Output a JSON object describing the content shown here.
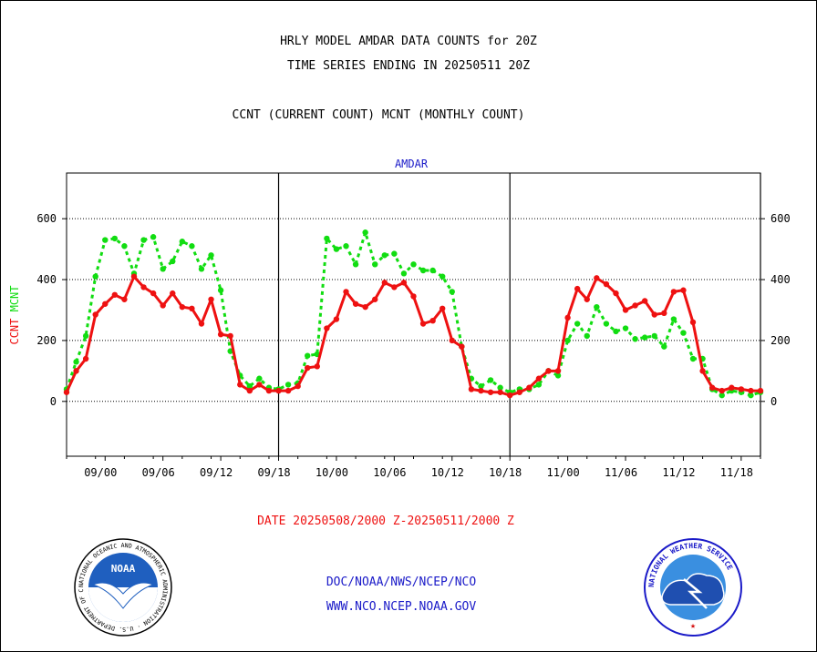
{
  "header": {
    "line1": "HRLY MODEL AMDAR DATA COUNTS for 20Z",
    "line2": "TIME SERIES ENDING IN 20250511 20Z",
    "line3": "CCNT (CURRENT COUNT) MCNT (MONTHLY COUNT)"
  },
  "footer": {
    "date_range": "DATE 20250508/2000 Z-20250511/2000 Z",
    "org_path": "DOC/NOAA/NWS/NCEP/NCO",
    "url": "WWW.NCO.NCEP.NOAA.GOV"
  },
  "logos": {
    "noaa_label": "NOAA",
    "noaa_ring": "NATIONAL OCEANIC AND ATMOSPHERIC ADMINISTRATION · U.S. DEPARTMENT OF COMMERCE",
    "nws_ring": "NATIONAL WEATHER SERVICE"
  },
  "colors": {
    "ccnt": "#ee1111",
    "mcnt": "#11dd11",
    "title_blue": "#1a1ac8"
  },
  "chart_data": {
    "type": "line",
    "title": "AMDAR",
    "ylabel": "CCNT  MCNT",
    "ylim": [
      -180,
      750
    ],
    "yticks": [
      0,
      200,
      400,
      600
    ],
    "grid": true,
    "xticks": [
      "09/00",
      "09/06",
      "09/12",
      "09/18",
      "10/00",
      "10/06",
      "10/12",
      "10/18",
      "11/00",
      "11/06",
      "11/12",
      "11/18"
    ],
    "day_dividers": [
      "09/18",
      "10/18",
      "11/20"
    ],
    "x": [
      "08/20",
      "08/21",
      "08/22",
      "08/23",
      "09/00",
      "09/01",
      "09/02",
      "09/03",
      "09/04",
      "09/05",
      "09/06",
      "09/07",
      "09/08",
      "09/09",
      "09/10",
      "09/11",
      "09/12",
      "09/13",
      "09/14",
      "09/15",
      "09/16",
      "09/17",
      "09/18",
      "09/19",
      "09/20",
      "09/21",
      "09/22",
      "09/23",
      "10/00",
      "10/01",
      "10/02",
      "10/03",
      "10/04",
      "10/05",
      "10/06",
      "10/07",
      "10/08",
      "10/09",
      "10/10",
      "10/11",
      "10/12",
      "10/13",
      "10/14",
      "10/15",
      "10/16",
      "10/17",
      "10/18",
      "10/19",
      "10/20",
      "10/21",
      "10/22",
      "10/23",
      "11/00",
      "11/01",
      "11/02",
      "11/03",
      "11/04",
      "11/05",
      "11/06",
      "11/07",
      "11/08",
      "11/09",
      "11/10",
      "11/11",
      "11/12",
      "11/13",
      "11/14",
      "11/15",
      "11/16",
      "11/17",
      "11/18",
      "11/19",
      "11/20"
    ],
    "series": [
      {
        "name": "CCNT",
        "values": [
          30,
          100,
          140,
          285,
          320,
          350,
          335,
          410,
          375,
          355,
          315,
          355,
          310,
          305,
          255,
          335,
          220,
          215,
          55,
          35,
          55,
          35,
          35,
          35,
          50,
          110,
          115,
          240,
          270,
          360,
          320,
          310,
          335,
          390,
          375,
          390,
          345,
          255,
          265,
          305,
          200,
          180,
          40,
          35,
          30,
          30,
          20,
          30,
          45,
          75,
          100,
          100,
          275,
          370,
          335,
          405,
          385,
          355,
          300,
          315,
          330,
          285,
          290,
          360,
          365,
          260,
          100,
          45,
          35,
          45,
          40,
          35,
          35
        ]
      },
      {
        "name": "MCNT",
        "values": [
          40,
          130,
          215,
          410,
          530,
          535,
          510,
          420,
          530,
          540,
          435,
          460,
          525,
          510,
          435,
          480,
          365,
          165,
          85,
          50,
          75,
          45,
          40,
          55,
          60,
          150,
          155,
          535,
          500,
          510,
          450,
          555,
          450,
          480,
          485,
          420,
          450,
          430,
          430,
          410,
          360,
          180,
          75,
          50,
          70,
          45,
          30,
          40,
          40,
          55,
          100,
          85,
          200,
          255,
          215,
          310,
          255,
          230,
          240,
          205,
          210,
          215,
          180,
          270,
          225,
          140,
          140,
          40,
          20,
          35,
          30,
          20,
          30
        ]
      }
    ]
  }
}
